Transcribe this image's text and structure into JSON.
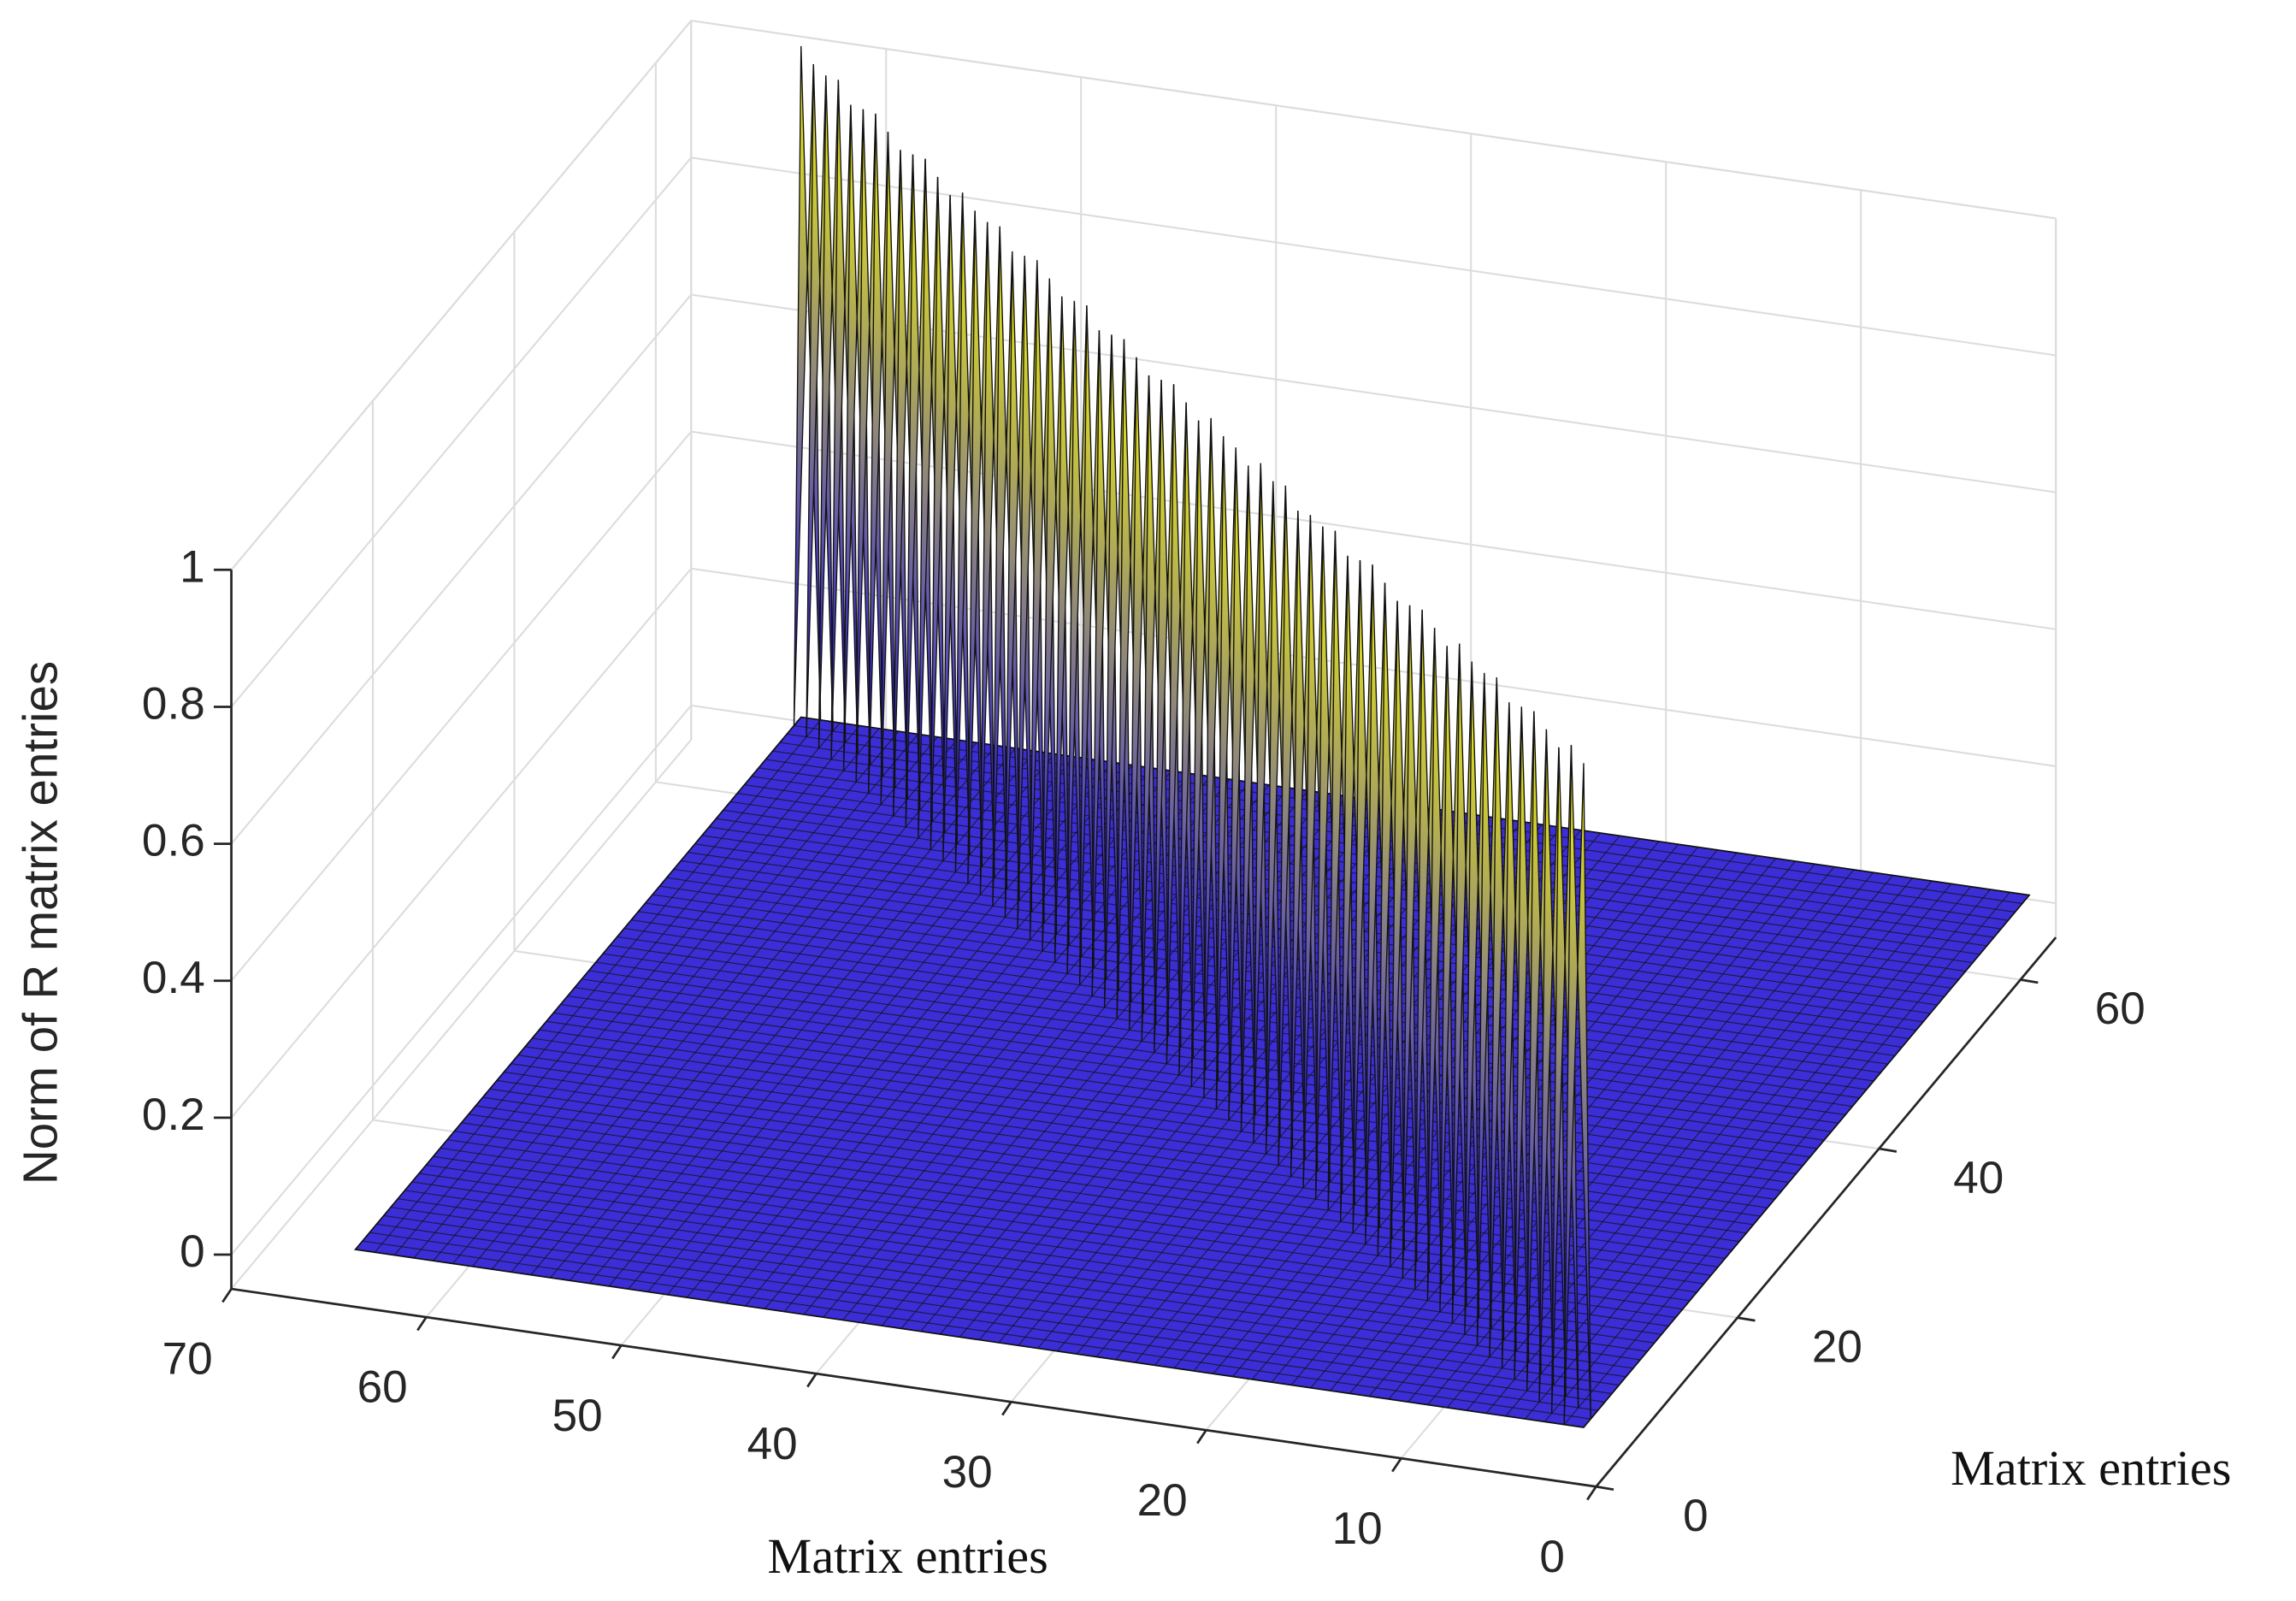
{
  "chart_data": {
    "type": "surface",
    "xlabel": "Matrix entries",
    "ylabel": "Matrix entries",
    "zlabel": "Norm of R matrix entries",
    "xlim": [
      0,
      70
    ],
    "ylim": [
      0,
      65
    ],
    "zlim": [
      -0.05,
      1
    ],
    "xticks": [
      0,
      10,
      20,
      30,
      40,
      50,
      60,
      70
    ],
    "yticks": [
      0,
      20,
      40,
      60
    ],
    "zticks": [
      0,
      0.2,
      0.4,
      0.6,
      0.8,
      1
    ],
    "grid": true,
    "colors": [
      "#3b2ed6",
      "#f5f50a"
    ],
    "floor": 0.02,
    "diagonal": [
      0.99,
      1.0,
      0.98,
      0.99,
      1.0,
      0.99,
      0.98,
      1.0,
      0.99,
      0.99,
      1.0,
      0.98,
      0.99,
      1.0,
      0.99,
      0.98,
      0.99,
      1.0,
      0.99,
      0.98,
      1.0,
      0.99,
      0.99,
      0.98,
      1.0,
      0.99,
      1.0,
      0.98,
      0.99,
      0.99,
      1.0,
      0.98,
      0.99,
      1.0,
      0.99,
      0.98,
      0.99,
      1.0,
      0.99,
      0.98,
      1.0,
      0.99,
      0.98,
      0.99,
      1.0,
      0.99,
      0.98,
      1.0,
      0.99,
      0.99,
      1.0,
      0.98,
      0.99,
      1.0,
      0.99,
      0.98,
      0.99,
      1.0,
      0.99,
      0.98,
      1.0,
      0.99,
      0.99,
      1.0
    ]
  }
}
